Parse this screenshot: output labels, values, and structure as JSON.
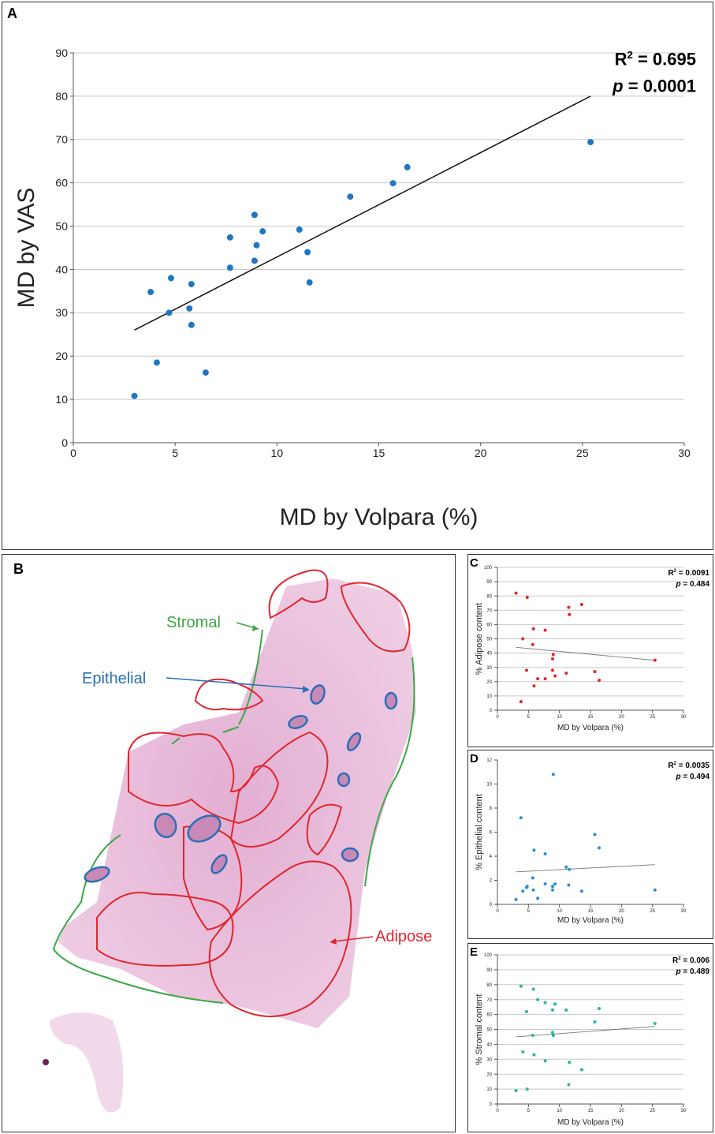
{
  "panels": {
    "A": {
      "letter": "A"
    },
    "B": {
      "letter": "B"
    },
    "C": {
      "letter": "C"
    },
    "D": {
      "letter": "D"
    },
    "E": {
      "letter": "E"
    }
  },
  "histology": {
    "labels": {
      "stromal": "Stromal",
      "epithelial": "Epithelial",
      "adipose": "Adipose"
    },
    "colors": {
      "stromal": "#3aa845",
      "epithelial": "#2a6fb5",
      "adipose": "#e0262e",
      "tissue": "#e6b3d4",
      "tissue_dark": "#c989b7"
    }
  },
  "chart_data": [
    {
      "panel": "A",
      "type": "scatter",
      "title": "",
      "xlabel": "MD by Volpara (%)",
      "ylabel": "MD by VAS",
      "xlim": [
        0,
        30
      ],
      "ylim": [
        0,
        90
      ],
      "xticks": [
        0,
        5,
        10,
        15,
        20,
        25,
        30
      ],
      "yticks": [
        0,
        10,
        20,
        30,
        40,
        50,
        60,
        70,
        80,
        90
      ],
      "grid": "horizontal",
      "color": "#1f77c4",
      "stats": {
        "r2_label": "R",
        "r2_sup": "2",
        "r2_value": " = 0.695",
        "p_label": "p",
        "p_value": " = 0.0001"
      },
      "points": [
        [
          3.0,
          10.8
        ],
        [
          4.1,
          18.5
        ],
        [
          3.8,
          34.8
        ],
        [
          4.7,
          30.0
        ],
        [
          4.8,
          38.0
        ],
        [
          5.7,
          31.0
        ],
        [
          5.8,
          27.2
        ],
        [
          5.8,
          36.6
        ],
        [
          6.5,
          16.2
        ],
        [
          7.7,
          47.4
        ],
        [
          7.7,
          40.4
        ],
        [
          8.9,
          52.6
        ],
        [
          8.9,
          42.0
        ],
        [
          9.0,
          45.6
        ],
        [
          9.3,
          48.8
        ],
        [
          11.1,
          49.2
        ],
        [
          11.5,
          44.0
        ],
        [
          11.6,
          37.0
        ],
        [
          13.6,
          56.8
        ],
        [
          15.7,
          59.9
        ],
        [
          16.4,
          63.6
        ],
        [
          25.4,
          69.4
        ]
      ],
      "trendline": [
        [
          3.0,
          26.0
        ],
        [
          25.4,
          80.0
        ]
      ]
    },
    {
      "panel": "C",
      "type": "scatter",
      "title": "",
      "xlabel": "MD by Volpara (%)",
      "ylabel": "% Adipose content",
      "xlim": [
        0,
        30
      ],
      "ylim": [
        0,
        100
      ],
      "xticks": [
        0,
        5,
        10,
        15,
        20,
        25,
        30
      ],
      "yticks": [
        0,
        10,
        20,
        30,
        40,
        50,
        60,
        70,
        80,
        90,
        100
      ],
      "grid": "horizontal",
      "color": "#e0262e",
      "stats": {
        "r2_label": "R",
        "r2_sup": "2",
        "r2_value": " = 0.0091",
        "p_label": "p",
        "p_value": " = 0.484"
      },
      "points": [
        [
          3.0,
          82
        ],
        [
          3.8,
          6
        ],
        [
          4.1,
          50
        ],
        [
          4.7,
          28
        ],
        [
          4.8,
          79
        ],
        [
          5.7,
          46
        ],
        [
          5.8,
          57
        ],
        [
          5.9,
          17
        ],
        [
          6.5,
          22
        ],
        [
          7.7,
          56
        ],
        [
          7.7,
          22
        ],
        [
          8.9,
          36
        ],
        [
          8.9,
          28
        ],
        [
          9.0,
          39
        ],
        [
          9.3,
          24
        ],
        [
          11.1,
          26
        ],
        [
          11.5,
          72
        ],
        [
          11.6,
          67
        ],
        [
          13.6,
          74
        ],
        [
          15.7,
          27
        ],
        [
          16.4,
          21
        ],
        [
          25.4,
          35
        ]
      ],
      "trendline": [
        [
          3.0,
          44
        ],
        [
          25.4,
          35
        ]
      ]
    },
    {
      "panel": "D",
      "type": "scatter",
      "title": "",
      "xlabel": "MD by Volpara (%)",
      "ylabel": "% Epithelial content",
      "xlim": [
        0,
        30
      ],
      "ylim": [
        0,
        12
      ],
      "xticks": [
        0,
        5,
        10,
        15,
        20,
        25,
        30
      ],
      "yticks": [
        0,
        2,
        4,
        6,
        8,
        10,
        12
      ],
      "grid": "none",
      "color": "#2a8fd0",
      "stats": {
        "r2_label": "R",
        "r2_sup": "2",
        "r2_value": " = 0.0035",
        "p_label": "p",
        "p_value": " = 0.494"
      },
      "points": [
        [
          3.0,
          0.4
        ],
        [
          3.8,
          7.2
        ],
        [
          4.1,
          1.1
        ],
        [
          4.7,
          1.4
        ],
        [
          4.8,
          1.5
        ],
        [
          5.7,
          2.2
        ],
        [
          5.8,
          1.2
        ],
        [
          5.9,
          4.5
        ],
        [
          6.5,
          0.5
        ],
        [
          7.7,
          1.7
        ],
        [
          7.7,
          4.2
        ],
        [
          8.9,
          1.2
        ],
        [
          8.9,
          1.5
        ],
        [
          9.0,
          10.8
        ],
        [
          9.3,
          1.7
        ],
        [
          11.1,
          3.1
        ],
        [
          11.5,
          1.6
        ],
        [
          11.6,
          2.9
        ],
        [
          13.6,
          1.1
        ],
        [
          15.7,
          5.8
        ],
        [
          16.4,
          4.7
        ],
        [
          25.4,
          1.2
        ]
      ],
      "trendline": [
        [
          3.0,
          2.7
        ],
        [
          25.4,
          3.3
        ]
      ]
    },
    {
      "panel": "E",
      "type": "scatter",
      "title": "",
      "xlabel": "MD by Volpara (%)",
      "ylabel": "% Stromal content",
      "xlim": [
        0,
        30
      ],
      "ylim": [
        0,
        100
      ],
      "xticks": [
        0,
        5,
        10,
        15,
        20,
        25,
        30
      ],
      "yticks": [
        0,
        10,
        20,
        30,
        40,
        50,
        60,
        70,
        80,
        90,
        100
      ],
      "grid": "horizontal",
      "color": "#2bb5a0",
      "stats": {
        "r2_label": "R",
        "r2_sup": "2",
        "r2_value": " = 0.006",
        "p_label": "p",
        "p_value": " = 0.489"
      },
      "points": [
        [
          3.0,
          9
        ],
        [
          3.8,
          79
        ],
        [
          4.1,
          35
        ],
        [
          4.7,
          62
        ],
        [
          4.8,
          10
        ],
        [
          5.7,
          46
        ],
        [
          5.8,
          77
        ],
        [
          5.9,
          33
        ],
        [
          6.5,
          70
        ],
        [
          7.7,
          29
        ],
        [
          7.7,
          68
        ],
        [
          8.9,
          63
        ],
        [
          8.9,
          48
        ],
        [
          9.0,
          46
        ],
        [
          9.3,
          67
        ],
        [
          11.1,
          63
        ],
        [
          11.5,
          13
        ],
        [
          11.6,
          28
        ],
        [
          13.6,
          23
        ],
        [
          15.7,
          55
        ],
        [
          16.4,
          64
        ],
        [
          25.4,
          54
        ]
      ],
      "trendline": [
        [
          3.0,
          45
        ],
        [
          25.4,
          52
        ]
      ]
    }
  ]
}
